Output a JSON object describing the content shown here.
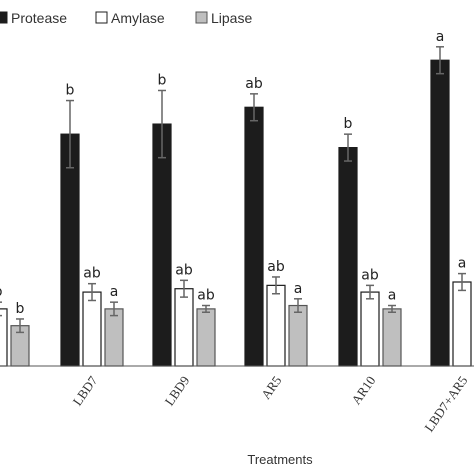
{
  "chart_data": {
    "type": "bar",
    "xlabel": "Treatments",
    "ylabel": "",
    "ylim": [
      0,
      100
    ],
    "categories": [
      "",
      "LBD7",
      "LBD9",
      "AR5",
      "AR10",
      "LBD7+AR5"
    ],
    "legend_position": "top",
    "series": [
      {
        "name": "Protease",
        "color": "#1c1c1c",
        "values": [
          null,
          69,
          72,
          77,
          65,
          91
        ],
        "errors": [
          null,
          10,
          10,
          4,
          4,
          4
        ],
        "letters": [
          null,
          "b",
          "b",
          "ab",
          "b",
          "a"
        ]
      },
      {
        "name": "Amylase",
        "color": "#ffffff",
        "values": [
          17,
          22,
          23,
          24,
          22,
          25
        ],
        "errors": [
          2,
          2.5,
          2.5,
          2.5,
          2,
          2.5
        ],
        "letters": [
          "b",
          "ab",
          "ab",
          "ab",
          "ab",
          "a"
        ]
      },
      {
        "name": "Lipase",
        "color": "#bfbfbf",
        "values": [
          12,
          17,
          17,
          18,
          17,
          null
        ],
        "errors": [
          2,
          2,
          1,
          2,
          1,
          null
        ],
        "letters": [
          "b",
          "a",
          "ab",
          "a",
          "a",
          null
        ]
      }
    ]
  }
}
